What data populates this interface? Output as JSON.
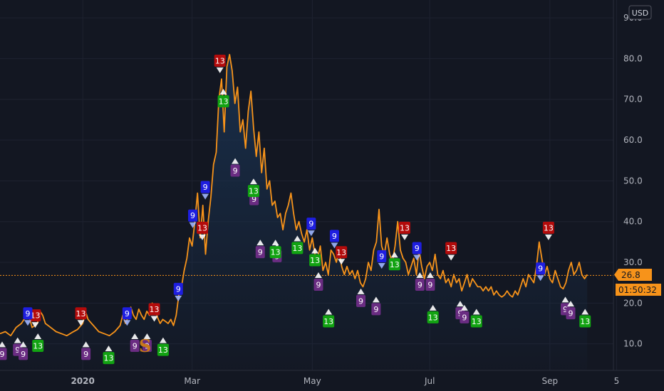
{
  "currency_label": "USD",
  "price_box": {
    "value": "26.8",
    "countdown": "01:50:32"
  },
  "watermark_letter": "S",
  "colors": {
    "background": "#131722",
    "grid": "#1e2230",
    "line": "#f7931a",
    "area": "#1a3352",
    "red": "#b30b0b",
    "blue": "#1e1ee0",
    "purple": "#6a2c82",
    "green": "#12a312",
    "price_label": "#f7931a"
  },
  "chart_data": {
    "type": "line",
    "title": "",
    "xlabel": "",
    "ylabel": "",
    "x_unit": "approximate trading day index (0 = mid Nov 2019)",
    "ylim": [
      4,
      95
    ],
    "y_ticks": [
      {
        "value": 10,
        "label": "10.0"
      },
      {
        "value": 20,
        "label": "20.0"
      },
      {
        "value": 30,
        "label": "30.0"
      },
      {
        "value": 40,
        "label": "40.0"
      },
      {
        "value": 50,
        "label": "50.0"
      },
      {
        "value": 60,
        "label": "60.0"
      },
      {
        "value": 70,
        "label": "70.0"
      },
      {
        "value": 80,
        "label": "80.0"
      },
      {
        "value": 90,
        "label": "90.0"
      }
    ],
    "x_ticks": [
      {
        "label": "2020",
        "day": 31,
        "bold": true
      },
      {
        "label": "Mar",
        "day": 72
      },
      {
        "label": "May",
        "day": 117
      },
      {
        "label": "Jul",
        "day": 161
      },
      {
        "label": "Sep",
        "day": 206
      },
      {
        "label": "5",
        "day": 231
      }
    ],
    "series": [
      {
        "values": [
          [
            0,
            12.5
          ],
          [
            2,
            13
          ],
          [
            4,
            12
          ],
          [
            6,
            14
          ],
          [
            8,
            15
          ],
          [
            10,
            17
          ],
          [
            11,
            16.5
          ],
          [
            12,
            14
          ],
          [
            14,
            15
          ],
          [
            15,
            18
          ],
          [
            16,
            17
          ],
          [
            17,
            15
          ],
          [
            19,
            14
          ],
          [
            21,
            13
          ],
          [
            23,
            12.5
          ],
          [
            25,
            12
          ],
          [
            27,
            12.8
          ],
          [
            29,
            13.5
          ],
          [
            31,
            15
          ],
          [
            32,
            18
          ],
          [
            33,
            16
          ],
          [
            35,
            14.5
          ],
          [
            37,
            13
          ],
          [
            39,
            12.5
          ],
          [
            41,
            12
          ],
          [
            43,
            13
          ],
          [
            45,
            14.5
          ],
          [
            46,
            17
          ],
          [
            47,
            15
          ],
          [
            48,
            16.5
          ],
          [
            49,
            19
          ],
          [
            50,
            17
          ],
          [
            51,
            16
          ],
          [
            52,
            18.5
          ],
          [
            53,
            17
          ],
          [
            54,
            16
          ],
          [
            55,
            18
          ],
          [
            56,
            17
          ],
          [
            57,
            20
          ],
          [
            58,
            19
          ],
          [
            59,
            16.5
          ],
          [
            60,
            15
          ],
          [
            61,
            16
          ],
          [
            62,
            15.5
          ],
          [
            63,
            15
          ],
          [
            64,
            16
          ],
          [
            65,
            14.5
          ],
          [
            66,
            17
          ],
          [
            67,
            22
          ],
          [
            68,
            24
          ],
          [
            69,
            28
          ],
          [
            70,
            31
          ],
          [
            71,
            36
          ],
          [
            72,
            34
          ],
          [
            73,
            40
          ],
          [
            74,
            47
          ],
          [
            75,
            36
          ],
          [
            76,
            44
          ],
          [
            77,
            32
          ],
          [
            78,
            40
          ],
          [
            79,
            46
          ],
          [
            80,
            54
          ],
          [
            81,
            57
          ],
          [
            82,
            70
          ],
          [
            83,
            75
          ],
          [
            84,
            62
          ],
          [
            85,
            78
          ],
          [
            86,
            81
          ],
          [
            87,
            77
          ],
          [
            88,
            69
          ],
          [
            89,
            73
          ],
          [
            90,
            62
          ],
          [
            91,
            65
          ],
          [
            92,
            58
          ],
          [
            93,
            67
          ],
          [
            94,
            72
          ],
          [
            95,
            63
          ],
          [
            96,
            56
          ],
          [
            97,
            62
          ],
          [
            98,
            52
          ],
          [
            99,
            58
          ],
          [
            100,
            48
          ],
          [
            101,
            50
          ],
          [
            102,
            44
          ],
          [
            103,
            45
          ],
          [
            104,
            41
          ],
          [
            105,
            42
          ],
          [
            106,
            38
          ],
          [
            107,
            42
          ],
          [
            108,
            44
          ],
          [
            109,
            47
          ],
          [
            110,
            42
          ],
          [
            111,
            38
          ],
          [
            112,
            40
          ],
          [
            113,
            37
          ],
          [
            114,
            35
          ],
          [
            115,
            38
          ],
          [
            116,
            33
          ],
          [
            117,
            36
          ],
          [
            118,
            32
          ],
          [
            119,
            31
          ],
          [
            120,
            34
          ],
          [
            121,
            28
          ],
          [
            122,
            30
          ],
          [
            123,
            27
          ],
          [
            124,
            33
          ],
          [
            125,
            32
          ],
          [
            126,
            30
          ],
          [
            127,
            33
          ],
          [
            128,
            29
          ],
          [
            129,
            27
          ],
          [
            130,
            29
          ],
          [
            131,
            27
          ],
          [
            132,
            28
          ],
          [
            133,
            26
          ],
          [
            134,
            28
          ],
          [
            135,
            25
          ],
          [
            136,
            24
          ],
          [
            137,
            26
          ],
          [
            138,
            30
          ],
          [
            139,
            28
          ],
          [
            140,
            33
          ],
          [
            141,
            35
          ],
          [
            142,
            43
          ],
          [
            143,
            34
          ],
          [
            144,
            32
          ],
          [
            145,
            36
          ],
          [
            146,
            32
          ],
          [
            147,
            30
          ],
          [
            148,
            34
          ],
          [
            149,
            40
          ],
          [
            150,
            33
          ],
          [
            151,
            31
          ],
          [
            152,
            30
          ],
          [
            153,
            27
          ],
          [
            154,
            29
          ],
          [
            155,
            31
          ],
          [
            156,
            27
          ],
          [
            157,
            33
          ],
          [
            158,
            29
          ],
          [
            159,
            26
          ],
          [
            160,
            29
          ],
          [
            161,
            30
          ],
          [
            162,
            28
          ],
          [
            163,
            32
          ],
          [
            164,
            27
          ],
          [
            165,
            26
          ],
          [
            166,
            28
          ],
          [
            167,
            25
          ],
          [
            168,
            26
          ],
          [
            169,
            24
          ],
          [
            170,
            27
          ],
          [
            171,
            25
          ],
          [
            172,
            26
          ],
          [
            173,
            23
          ],
          [
            174,
            25
          ],
          [
            175,
            27
          ],
          [
            176,
            24
          ],
          [
            177,
            26
          ],
          [
            178,
            25
          ],
          [
            179,
            24
          ],
          [
            180,
            24
          ],
          [
            181,
            23
          ],
          [
            182,
            24
          ],
          [
            183,
            23
          ],
          [
            184,
            24
          ],
          [
            185,
            22
          ],
          [
            186,
            23
          ],
          [
            187,
            22
          ],
          [
            188,
            21.5
          ],
          [
            189,
            22
          ],
          [
            190,
            23
          ],
          [
            191,
            22
          ],
          [
            192,
            21.5
          ],
          [
            193,
            23
          ],
          [
            194,
            22
          ],
          [
            195,
            24
          ],
          [
            196,
            26
          ],
          [
            197,
            24
          ],
          [
            198,
            27
          ],
          [
            199,
            26
          ],
          [
            200,
            25
          ],
          [
            201,
            29
          ],
          [
            202,
            35
          ],
          [
            203,
            31
          ],
          [
            204,
            27
          ],
          [
            205,
            29
          ],
          [
            206,
            26
          ],
          [
            207,
            25
          ],
          [
            208,
            28
          ],
          [
            209,
            26
          ],
          [
            210,
            24
          ],
          [
            211,
            23.5
          ],
          [
            212,
            25
          ],
          [
            213,
            28
          ],
          [
            214,
            30
          ],
          [
            215,
            27
          ],
          [
            216,
            28
          ],
          [
            217,
            30
          ],
          [
            218,
            27
          ],
          [
            219,
            26
          ],
          [
            220,
            27
          ]
        ]
      }
    ],
    "last_value": 26.8,
    "annotations": [
      {
        "type": "red13",
        "day": 13.2,
        "value": 15.5
      },
      {
        "type": "red13",
        "day": 30.3,
        "value": 16
      },
      {
        "type": "red13",
        "day": 57.8,
        "value": 17
      },
      {
        "type": "red13",
        "day": 82.4,
        "value": 78
      },
      {
        "type": "red13",
        "day": 75.8,
        "value": 37
      },
      {
        "type": "red13",
        "day": 127.9,
        "value": 31
      },
      {
        "type": "red13",
        "day": 151.6,
        "value": 37
      },
      {
        "type": "red13",
        "day": 169.0,
        "value": 32
      },
      {
        "type": "red13",
        "day": 205.5,
        "value": 37
      },
      {
        "type": "blue9",
        "day": 10.4,
        "value": 16
      },
      {
        "type": "blue9",
        "day": 47.6,
        "value": 16
      },
      {
        "type": "blue9",
        "day": 66.8,
        "value": 22
      },
      {
        "type": "blue9",
        "day": 72.2,
        "value": 40
      },
      {
        "type": "blue9",
        "day": 76.9,
        "value": 47
      },
      {
        "type": "blue9",
        "day": 116.6,
        "value": 38
      },
      {
        "type": "blue9",
        "day": 125.3,
        "value": 35
      },
      {
        "type": "blue9",
        "day": 143.0,
        "value": 30
      },
      {
        "type": "blue9",
        "day": 156.2,
        "value": 32
      },
      {
        "type": "blue9",
        "day": 202.5,
        "value": 27
      },
      {
        "type": "purple9",
        "day": 0.8,
        "value": 9
      },
      {
        "type": "purple9",
        "day": 6.6,
        "value": 10
      },
      {
        "type": "purple9",
        "day": 8.7,
        "value": 9
      },
      {
        "type": "purple9",
        "day": 32.2,
        "value": 9
      },
      {
        "type": "purple9",
        "day": 50.5,
        "value": 11
      },
      {
        "type": "purple9",
        "day": 55.1,
        "value": 11
      },
      {
        "type": "purple9",
        "day": 88.1,
        "value": 54
      },
      {
        "type": "purple9",
        "day": 95.2,
        "value": 47
      },
      {
        "type": "purple9",
        "day": 97.5,
        "value": 34
      },
      {
        "type": "purple9",
        "day": 103.8,
        "value": 33
      },
      {
        "type": "purple9",
        "day": 119.3,
        "value": 26
      },
      {
        "type": "purple9",
        "day": 135.2,
        "value": 22
      },
      {
        "type": "purple9",
        "day": 140.9,
        "value": 20
      },
      {
        "type": "purple9",
        "day": 157.3,
        "value": 26
      },
      {
        "type": "purple9",
        "day": 161.2,
        "value": 26
      },
      {
        "type": "purple9",
        "day": 172.4,
        "value": 19
      },
      {
        "type": "purple9",
        "day": 174.0,
        "value": 18
      },
      {
        "type": "purple9",
        "day": 211.8,
        "value": 20
      },
      {
        "type": "purple9",
        "day": 213.8,
        "value": 19
      },
      {
        "type": "green13",
        "day": 14.2,
        "value": 11
      },
      {
        "type": "green13",
        "day": 40.7,
        "value": 8
      },
      {
        "type": "green13",
        "day": 61.1,
        "value": 10
      },
      {
        "type": "green13",
        "day": 83.7,
        "value": 71
      },
      {
        "type": "green13",
        "day": 95.0,
        "value": 49
      },
      {
        "type": "green13",
        "day": 103.2,
        "value": 34
      },
      {
        "type": "green13",
        "day": 111.4,
        "value": 35
      },
      {
        "type": "green13",
        "day": 118.0,
        "value": 32
      },
      {
        "type": "green13",
        "day": 123.1,
        "value": 17
      },
      {
        "type": "green13",
        "day": 147.8,
        "value": 31
      },
      {
        "type": "green13",
        "day": 162.2,
        "value": 18
      },
      {
        "type": "green13",
        "day": 178.5,
        "value": 17
      },
      {
        "type": "green13",
        "day": 219.2,
        "value": 17
      }
    ]
  }
}
